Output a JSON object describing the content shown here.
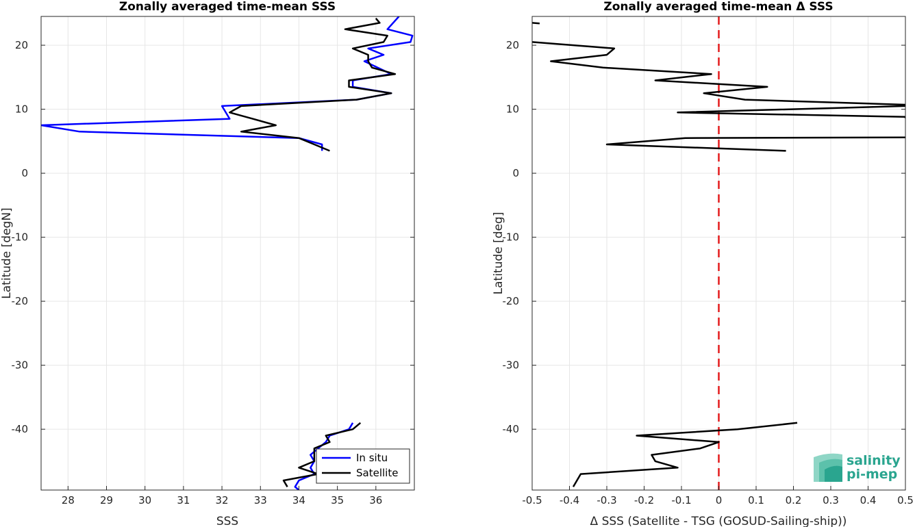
{
  "chart_data": [
    {
      "type": "line",
      "title": "Zonally averaged time-mean SSS",
      "xlabel": "SSS",
      "ylabel": "Latitude [degN]",
      "xlim": [
        27.3,
        37.0
      ],
      "ylim": [
        -49.5,
        24.5
      ],
      "xticks": [
        "28",
        "29",
        "30",
        "31",
        "32",
        "33",
        "34",
        "35",
        "36"
      ],
      "yticks": [
        "20",
        "10",
        "0",
        "-10",
        "-20",
        "-30",
        "-40"
      ],
      "grid": true,
      "legend_position": "bottom-right",
      "series": [
        {
          "name": "In situ",
          "color": "#0000ff",
          "segments": [
            [
              [
                36.6,
                24.5
              ],
              [
                36.3,
                22.5
              ],
              [
                36.95,
                21.5
              ],
              [
                36.9,
                20.5
              ],
              [
                35.8,
                19.5
              ],
              [
                36.2,
                18.5
              ],
              [
                35.7,
                17.5
              ],
              [
                36.4,
                15.5
              ],
              [
                35.4,
                14.5
              ],
              [
                35.4,
                13.5
              ],
              [
                36.4,
                12.5
              ],
              [
                35.5,
                11.5
              ],
              [
                32.0,
                10.5
              ],
              [
                32.2,
                8.5
              ],
              [
                27.3,
                7.5
              ],
              [
                28.3,
                6.5
              ],
              [
                34.0,
                5.5
              ],
              [
                34.6,
                4.5
              ],
              [
                34.6,
                3.5
              ]
            ],
            [
              [
                35.4,
                -39.0
              ],
              [
                35.3,
                -40.0
              ],
              [
                34.8,
                -41.0
              ],
              [
                34.7,
                -42.0
              ],
              [
                34.5,
                -43.0
              ],
              [
                34.3,
                -44.0
              ],
              [
                34.4,
                -45.0
              ],
              [
                34.3,
                -46.0
              ],
              [
                34.4,
                -47.0
              ],
              [
                34.0,
                -48.0
              ],
              [
                33.9,
                -49.0
              ],
              [
                34.0,
                -49.5
              ]
            ]
          ]
        },
        {
          "name": "Satellite",
          "color": "#000000",
          "segments": [
            [
              [
                36.0,
                24.2
              ],
              [
                36.1,
                23.5
              ],
              [
                35.2,
                22.5
              ],
              [
                36.3,
                21.5
              ],
              [
                36.2,
                20.5
              ],
              [
                35.4,
                19.5
              ],
              [
                35.8,
                18.5
              ],
              [
                35.8,
                17.5
              ],
              [
                35.9,
                16.5
              ],
              [
                36.5,
                15.5
              ],
              [
                35.3,
                14.5
              ],
              [
                35.3,
                13.5
              ],
              [
                36.4,
                12.5
              ],
              [
                35.5,
                11.5
              ],
              [
                32.5,
                10.5
              ],
              [
                32.2,
                9.5
              ],
              [
                32.8,
                8.5
              ],
              [
                33.4,
                7.5
              ],
              [
                32.5,
                6.5
              ],
              [
                34.0,
                5.5
              ],
              [
                34.4,
                4.5
              ],
              [
                34.8,
                3.5
              ]
            ],
            [
              [
                35.6,
                -39.0
              ],
              [
                35.4,
                -40.0
              ],
              [
                34.7,
                -41.0
              ],
              [
                34.8,
                -42.0
              ],
              [
                34.4,
                -43.0
              ],
              [
                34.4,
                -44.0
              ],
              [
                34.4,
                -45.0
              ],
              [
                34.0,
                -46.0
              ],
              [
                34.5,
                -47.0
              ],
              [
                33.6,
                -48.0
              ],
              [
                33.7,
                -49.0
              ]
            ]
          ]
        }
      ]
    },
    {
      "type": "line",
      "title": "Zonally averaged time-mean Δ SSS",
      "xlabel": "Δ SSS (Satellite - TSG (GOSUD-Sailing-ship))",
      "ylabel": "Latitude [deg]",
      "xlim": [
        -0.5,
        0.5
      ],
      "ylim": [
        -49.5,
        24.5
      ],
      "xticks": [
        "-0.5",
        "-0.4",
        "-0.3",
        "-0.2",
        "-0.1",
        "0",
        "0.1",
        "0.2",
        "0.3",
        "0.4",
        "0.5"
      ],
      "yticks": [
        "20",
        "10",
        "0",
        "-10",
        "-20",
        "-30",
        "-40"
      ],
      "grid": true,
      "reference_line": {
        "x": 0,
        "color": "#e41a1c",
        "style": "dashed"
      },
      "series": [
        {
          "color": "#000000",
          "segments": [
            [
              [
                -0.5,
                23.5
              ],
              [
                -0.48,
                23.4
              ]
            ],
            [
              [
                -0.5,
                20.5
              ],
              [
                -0.28,
                19.5
              ],
              [
                -0.3,
                18.5
              ],
              [
                -0.45,
                17.5
              ],
              [
                -0.31,
                16.5
              ],
              [
                -0.02,
                15.5
              ],
              [
                -0.17,
                14.5
              ],
              [
                0.13,
                13.5
              ],
              [
                -0.04,
                12.5
              ],
              [
                0.07,
                11.5
              ],
              [
                0.5,
                10.7
              ],
              [
                0.5,
                10.5
              ],
              [
                -0.11,
                9.5
              ],
              [
                0.5,
                8.8
              ],
              [
                0.5,
                8.6
              ]
            ],
            [
              [
                0.5,
                5.6
              ],
              [
                -0.09,
                5.5
              ],
              [
                -0.3,
                4.5
              ],
              [
                0.18,
                3.5
              ]
            ],
            [
              [
                0.21,
                -39.0
              ],
              [
                0.05,
                -40.0
              ],
              [
                -0.22,
                -41.0
              ],
              [
                0.0,
                -42.0
              ],
              [
                -0.05,
                -43.0
              ],
              [
                -0.18,
                -44.0
              ],
              [
                -0.17,
                -45.0
              ],
              [
                -0.11,
                -46.0
              ],
              [
                -0.37,
                -47.0
              ],
              [
                -0.39,
                -49.0
              ]
            ]
          ]
        }
      ]
    }
  ],
  "legend": {
    "items": [
      {
        "label": "In situ",
        "color": "#0000ff"
      },
      {
        "label": "Satellite",
        "color": "#000000"
      }
    ]
  },
  "logo": {
    "line1": "salinity",
    "line2": "pi-mep"
  }
}
